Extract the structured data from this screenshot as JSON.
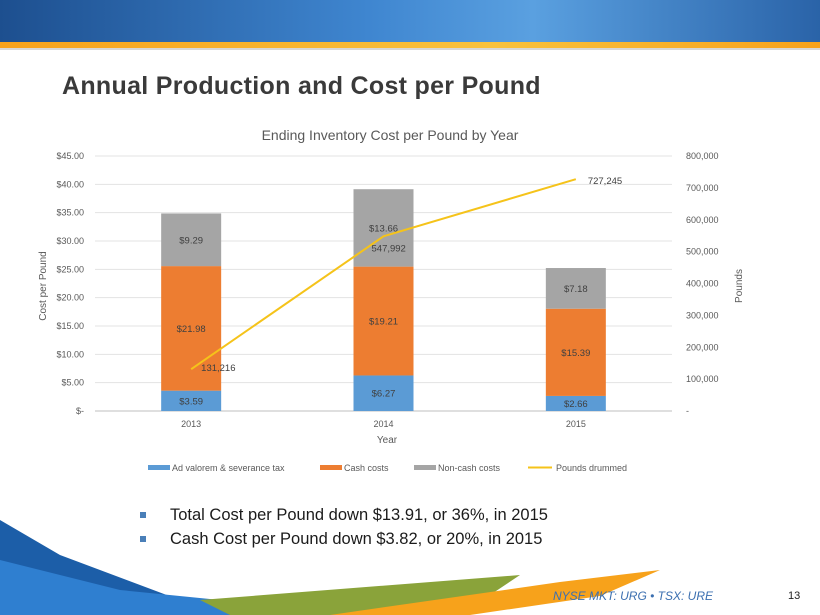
{
  "slide": {
    "title": "Annual Production and Cost per Pound",
    "bullets": [
      "Total Cost per Pound down $13.91, or 36%, in 2015",
      "Cash Cost per Pound down $3.82, or 20%, in 2015"
    ],
    "footer": "NYSE MKT: URG • TSX: URE",
    "page_number": "13"
  },
  "colors": {
    "ad_valorem": "#5b9bd5",
    "cash": "#ed7d31",
    "non_cash": "#a5a5a5",
    "pounds_line": "#f5c31a"
  },
  "chart_data": {
    "type": "bar",
    "stacked": true,
    "title": "Ending Inventory  Cost per Pound by Year",
    "xlabel": "Year",
    "ylabel": "Cost per Pound",
    "y2label": "Pounds",
    "categories": [
      "2013",
      "2014",
      "2015"
    ],
    "ylim": [
      0,
      45
    ],
    "y_ticks": [
      "$-",
      "$5.00",
      "$10.00",
      "$15.00",
      "$20.00",
      "$25.00",
      "$30.00",
      "$35.00",
      "$40.00",
      "$45.00"
    ],
    "y2lim": [
      0,
      800000
    ],
    "y2_ticks": [
      "-",
      "100,000",
      "200,000",
      "300,000",
      "400,000",
      "500,000",
      "600,000",
      "700,000",
      "800,000"
    ],
    "series": [
      {
        "name": "Ad valorem & severance tax",
        "values": [
          3.59,
          6.27,
          2.66
        ],
        "labels": [
          "$3.59",
          "$6.27",
          "$2.66"
        ]
      },
      {
        "name": "Cash costs",
        "values": [
          21.98,
          19.21,
          15.39
        ],
        "labels": [
          "$21.98",
          "$19.21",
          "$15.39"
        ]
      },
      {
        "name": "Non-cash costs",
        "values": [
          9.29,
          13.66,
          7.18
        ],
        "labels": [
          "$9.29",
          "$13.66",
          "$7.18"
        ]
      }
    ],
    "line_series": {
      "name": "Pounds drummed",
      "axis": "secondary",
      "values": [
        131216,
        547992,
        727245
      ],
      "labels": [
        "131,216",
        "547,992",
        "727,245"
      ]
    },
    "legend": "bottom"
  }
}
